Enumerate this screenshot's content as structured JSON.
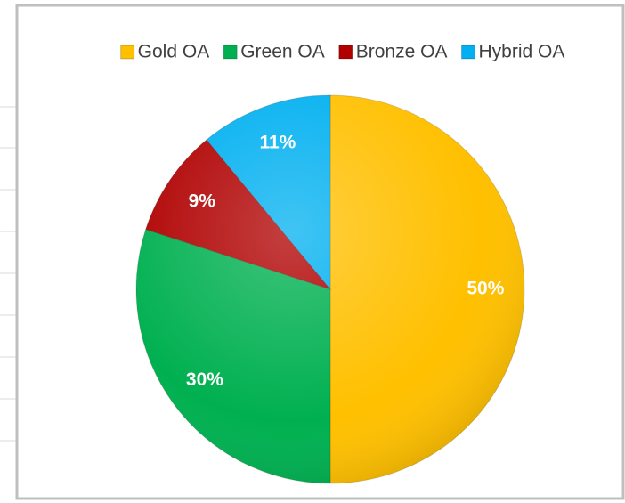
{
  "chart_data": {
    "type": "pie",
    "categories": [
      "Gold OA",
      "Green OA",
      "Bronze OA",
      "Hybrid OA"
    ],
    "values": [
      50,
      30,
      9,
      11
    ],
    "value_labels": [
      "50%",
      "30%",
      "9%",
      "11%"
    ],
    "colors": [
      "#FFC000",
      "#00B050",
      "#B00000",
      "#00B0F0"
    ],
    "legend": "top"
  }
}
